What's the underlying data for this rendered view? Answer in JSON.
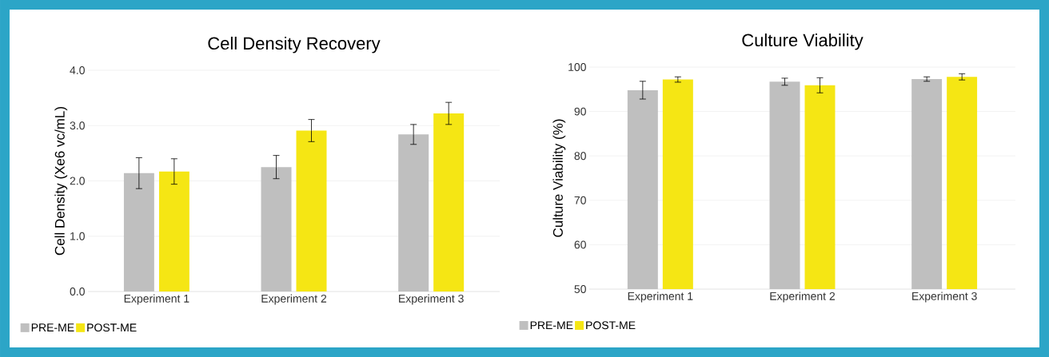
{
  "chart_data": [
    {
      "type": "bar",
      "title": "Cell Density Recovery",
      "ylabel": "Cell Density (Xe6 vc/mL)",
      "categories": [
        "Experiment 1",
        "Experiment 2",
        "Experiment 3"
      ],
      "series": [
        {
          "name": "PRE-ME",
          "color": "#bfbfbf",
          "values": [
            2.14,
            2.25,
            2.84
          ],
          "errors": [
            0.28,
            0.21,
            0.18
          ]
        },
        {
          "name": "POST-ME",
          "color": "#f5e614",
          "values": [
            2.17,
            2.91,
            3.22
          ],
          "errors": [
            0.23,
            0.2,
            0.2
          ]
        }
      ],
      "ylim": [
        0,
        4
      ],
      "yticks": [
        {
          "value": 0,
          "label": "0.0"
        },
        {
          "value": 1,
          "label": "1.0"
        },
        {
          "value": 2,
          "label": "2.0"
        },
        {
          "value": 3,
          "label": "3.0"
        },
        {
          "value": 4,
          "label": "4.0"
        }
      ],
      "grid": "y",
      "legend": "bottom"
    },
    {
      "type": "bar",
      "title": "Culture Viability",
      "ylabel": "Culture Viability (%)",
      "categories": [
        "Experiment 1",
        "Experiment 2",
        "Experiment 3"
      ],
      "series": [
        {
          "name": "PRE-ME",
          "color": "#bfbfbf",
          "values": [
            94.8,
            96.7,
            97.3
          ],
          "errors": [
            2.0,
            0.8,
            0.5
          ]
        },
        {
          "name": "POST-ME",
          "color": "#f5e614",
          "values": [
            97.2,
            95.9,
            97.8
          ],
          "errors": [
            0.6,
            1.7,
            0.7
          ]
        }
      ],
      "ylim": [
        50,
        100
      ],
      "yticks": [
        50,
        60,
        70,
        80,
        90,
        100
      ],
      "grid": "y",
      "legend": "bottom"
    }
  ]
}
